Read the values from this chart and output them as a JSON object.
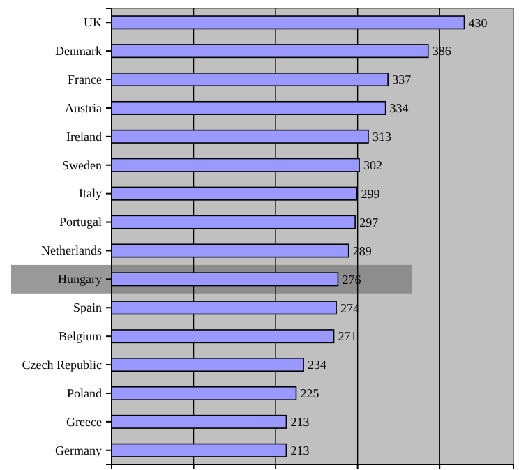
{
  "chart_data": {
    "type": "bar",
    "orientation": "horizontal",
    "categories": [
      "UK",
      "Denmark",
      "France",
      "Austria",
      "Ireland",
      "Sweden",
      "Italy",
      "Portugal",
      "Netherlands",
      "Hungary",
      "Spain",
      "Belgium",
      "Czech Republic",
      "Poland",
      "Greece",
      "Germany"
    ],
    "values": [
      430,
      386,
      337,
      334,
      313,
      302,
      299,
      297,
      289,
      276,
      274,
      271,
      234,
      225,
      213,
      213
    ],
    "color": "#9999ff",
    "xlim": [
      0,
      490
    ],
    "xticks": [
      {
        "value": 0,
        "label": null
      },
      {
        "value": 100,
        "label": null
      },
      {
        "value": 200,
        "label": null
      },
      {
        "value": 300,
        "label": null
      },
      {
        "value": 400,
        "label": null
      }
    ],
    "tick_labels": "y",
    "grid": "x",
    "data_labels": true,
    "bands": [
      {
        "axis": "y",
        "from": "Hungary",
        "to": "Hungary",
        "color": "#808080"
      }
    ]
  }
}
